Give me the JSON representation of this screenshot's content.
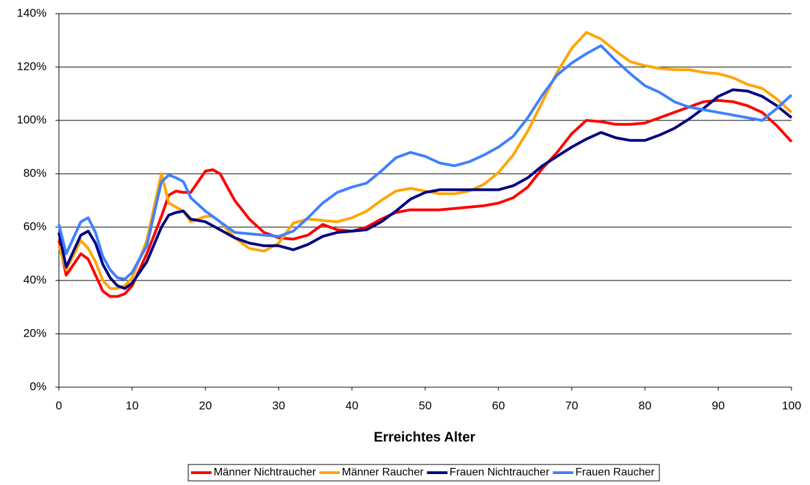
{
  "chart_data": {
    "type": "line",
    "x_label": "Erreichtes Alter",
    "x": [
      0,
      1,
      3,
      4,
      5,
      6,
      7,
      8,
      9,
      10,
      12,
      14,
      15,
      16,
      17,
      18,
      20,
      21,
      22,
      24,
      26,
      28,
      30,
      32,
      34,
      36,
      38,
      40,
      42,
      44,
      46,
      48,
      50,
      52,
      54,
      56,
      58,
      60,
      62,
      64,
      66,
      68,
      70,
      72,
      74,
      76,
      78,
      80,
      82,
      84,
      86,
      88,
      90,
      92,
      94,
      96,
      98,
      100
    ],
    "xlim": [
      0,
      100
    ],
    "xticks": [
      0,
      10,
      20,
      30,
      40,
      50,
      60,
      70,
      80,
      90,
      100
    ],
    "ylim": [
      0,
      140
    ],
    "yticks": [
      {
        "value": 0,
        "label": "0%"
      },
      {
        "value": 20,
        "label": "20%"
      },
      {
        "value": 40,
        "label": "40%"
      },
      {
        "value": 60,
        "label": "60%"
      },
      {
        "value": 80,
        "label": "80%"
      },
      {
        "value": 100,
        "label": "100%"
      },
      {
        "value": 120,
        "label": "120%"
      },
      {
        "value": 140,
        "label": "140%"
      }
    ],
    "grid": true,
    "legend": "bottom",
    "series": [
      {
        "name": "Männer Nichtraucher",
        "color": "#ff0000",
        "values": [
          55,
          42,
          50,
          48,
          42,
          36,
          34,
          34,
          35,
          38,
          50,
          64,
          72,
          73.5,
          73,
          73,
          81,
          81.5,
          80,
          70,
          63,
          58,
          56,
          55.5,
          57,
          61,
          59,
          58.5,
          60,
          63,
          65.5,
          66.5,
          66.5,
          66.5,
          67,
          67.5,
          68,
          69,
          71,
          75,
          82,
          88,
          95,
          100,
          99.5,
          98.5,
          98.5,
          99,
          101,
          103,
          105,
          107,
          107.5,
          107,
          105.5,
          103,
          98,
          92
        ]
      },
      {
        "name": "Männer Raucher",
        "color": "#ffa500",
        "values": [
          53,
          44,
          55,
          52,
          47,
          40,
          37,
          37,
          38,
          41,
          55,
          80,
          69,
          67.5,
          66,
          62,
          64,
          64,
          62,
          56,
          52,
          51,
          54,
          61.5,
          63,
          62.5,
          62,
          63.5,
          66,
          70,
          73.5,
          74.5,
          73.5,
          72.5,
          72.5,
          73.5,
          76,
          80.5,
          87,
          96,
          107,
          118,
          127,
          133,
          130.5,
          126,
          122,
          120.5,
          119.5,
          119,
          119,
          118,
          117.5,
          116,
          113.5,
          112,
          108,
          103
        ]
      },
      {
        "name": "Frauen Nichtraucher",
        "color": "#000080",
        "values": [
          58,
          45,
          57,
          58.5,
          54,
          46,
          41,
          38,
          37,
          39,
          47,
          60,
          64.5,
          65.5,
          66,
          63,
          62,
          60.5,
          59,
          56,
          54,
          53,
          53,
          51.5,
          53.5,
          56.5,
          58,
          58.5,
          59,
          62,
          66,
          70.5,
          73,
          74,
          74,
          74,
          74,
          74,
          75.5,
          78.5,
          83,
          86.5,
          90,
          93,
          95.5,
          93.5,
          92.5,
          92.5,
          94.5,
          97,
          100.5,
          104.5,
          109,
          111.5,
          111,
          109,
          105.5,
          101
        ]
      },
      {
        "name": "Frauen Raucher",
        "color": "#4080ff",
        "values": [
          61,
          50,
          62,
          63.5,
          58,
          49,
          44,
          41,
          40.5,
          43,
          53,
          77,
          79.5,
          78.5,
          77,
          71,
          66,
          64,
          62,
          58,
          57.5,
          57,
          56.5,
          58.5,
          63.5,
          69,
          73,
          75,
          76.5,
          81,
          86,
          88,
          86.5,
          84,
          83,
          84.5,
          87,
          90,
          94,
          101,
          109.5,
          117,
          121.5,
          125,
          128,
          122.5,
          117.5,
          113,
          110.5,
          107,
          105,
          104,
          103,
          102,
          101,
          100,
          104.5,
          109.5
        ]
      }
    ]
  }
}
